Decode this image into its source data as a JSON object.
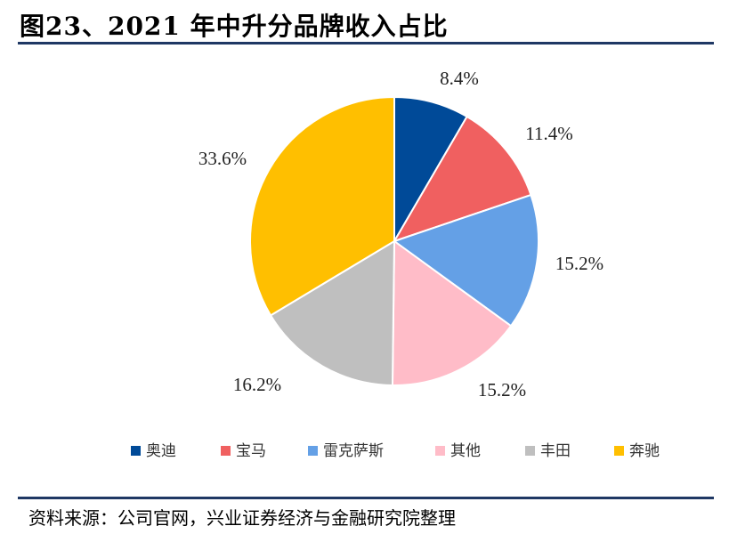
{
  "header": {
    "title": "图23、2021 年中升分品牌收入占比"
  },
  "footer": {
    "source": "资料来源：公司官网，兴业证券经济与金融研究院整理"
  },
  "chart_data": {
    "type": "pie",
    "title": "",
    "start": "top",
    "direction": "clockwise",
    "legend_position": "bottom",
    "slices": [
      {
        "name": "奥迪",
        "value": 8.4,
        "label": "8.4%",
        "color": "#004a98"
      },
      {
        "name": "宝马",
        "value": 11.4,
        "label": "11.4%",
        "color": "#f06060"
      },
      {
        "name": "雷克萨斯",
        "value": 15.2,
        "label": "15.2%",
        "color": "#64a0e6"
      },
      {
        "name": "其他",
        "value": 15.2,
        "label": "15.2%",
        "color": "#ffbcc8"
      },
      {
        "name": "丰田",
        "value": 16.2,
        "label": "16.2%",
        "color": "#bfbfbf"
      },
      {
        "name": "奔驰",
        "value": 33.6,
        "label": "33.6%",
        "color": "#ffbf00"
      }
    ]
  }
}
